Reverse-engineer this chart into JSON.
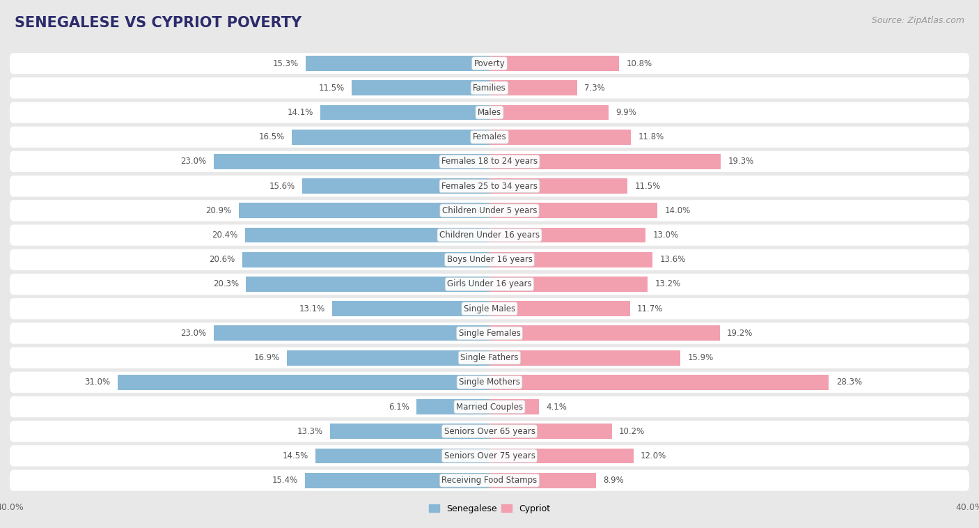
{
  "title": "SENEGALESE VS CYPRIOT POVERTY",
  "source": "Source: ZipAtlas.com",
  "categories": [
    "Poverty",
    "Families",
    "Males",
    "Females",
    "Females 18 to 24 years",
    "Females 25 to 34 years",
    "Children Under 5 years",
    "Children Under 16 years",
    "Boys Under 16 years",
    "Girls Under 16 years",
    "Single Males",
    "Single Females",
    "Single Fathers",
    "Single Mothers",
    "Married Couples",
    "Seniors Over 65 years",
    "Seniors Over 75 years",
    "Receiving Food Stamps"
  ],
  "senegalese": [
    15.3,
    11.5,
    14.1,
    16.5,
    23.0,
    15.6,
    20.9,
    20.4,
    20.6,
    20.3,
    13.1,
    23.0,
    16.9,
    31.0,
    6.1,
    13.3,
    14.5,
    15.4
  ],
  "cypriot": [
    10.8,
    7.3,
    9.9,
    11.8,
    19.3,
    11.5,
    14.0,
    13.0,
    13.6,
    13.2,
    11.7,
    19.2,
    15.9,
    28.3,
    4.1,
    10.2,
    12.0,
    8.9
  ],
  "senegalese_color": "#88b8d5",
  "cypriot_color": "#f29faf",
  "background_color": "#e8e8e8",
  "row_color": "#ffffff",
  "axis_max": 40.0,
  "bar_height": 0.62,
  "row_padding": 0.08,
  "title_fontsize": 15,
  "label_fontsize": 8.5,
  "value_fontsize": 8.5,
  "tick_fontsize": 9,
  "source_fontsize": 9
}
